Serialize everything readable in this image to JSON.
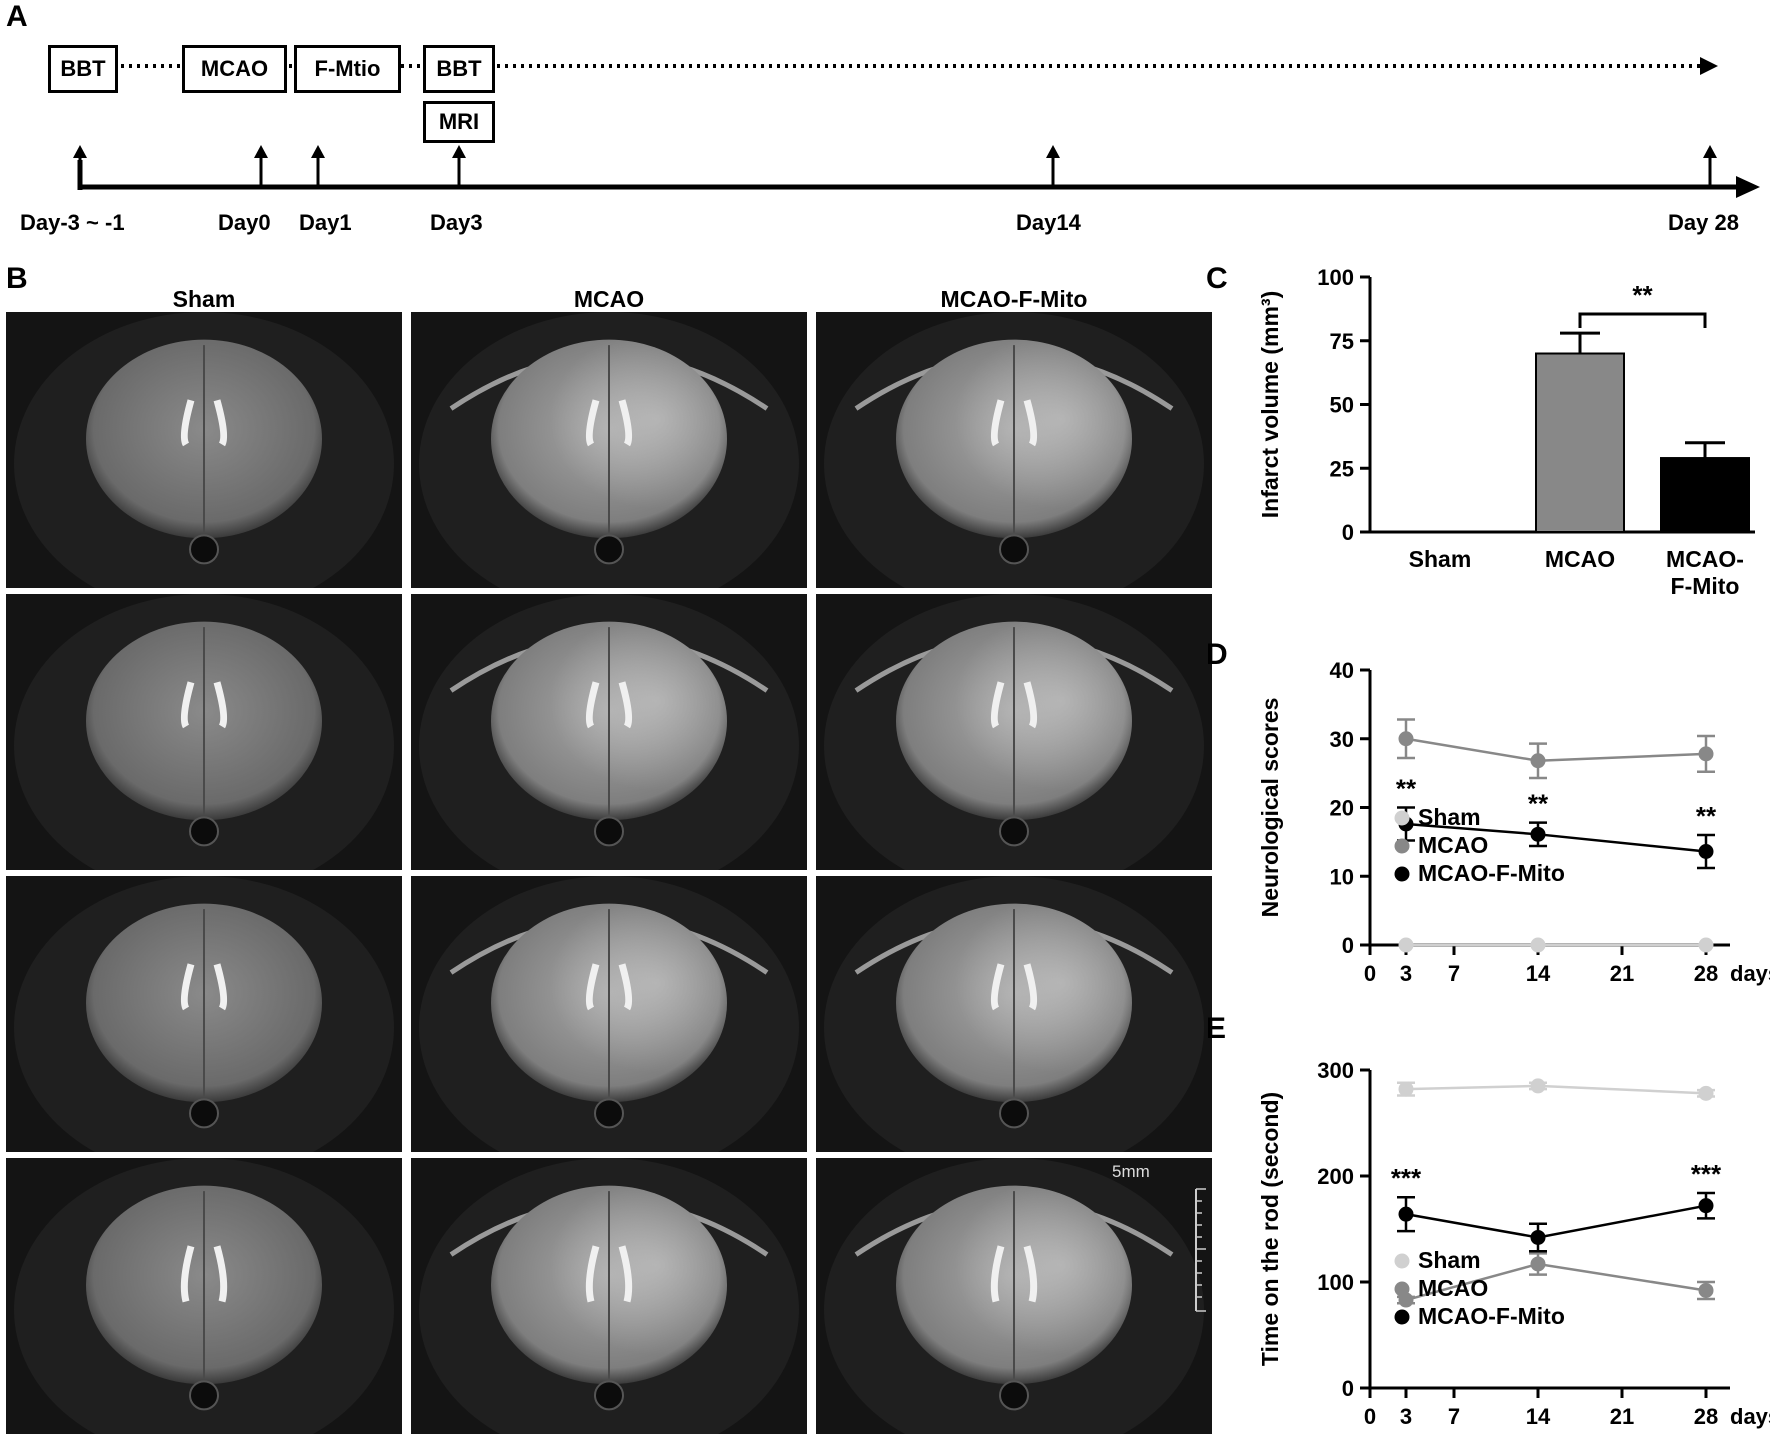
{
  "panels": {
    "a": "A",
    "b": "B",
    "c": "C",
    "d": "D",
    "e": "E"
  },
  "timeline": {
    "boxes": [
      "BBT",
      "MCAO",
      "F-Mtio",
      "BBT",
      "MRI"
    ],
    "days": [
      "Day-3 ~ -1",
      "Day0",
      "Day1",
      "Day3",
      "Day14",
      "Day 28"
    ]
  },
  "mri": {
    "columns": [
      "Sham",
      "MCAO",
      "MCAO-F-Mito"
    ],
    "scale_bar": "5mm"
  },
  "chart_data": [
    {
      "type": "bar",
      "panel": "C",
      "categories": [
        "Sham",
        "MCAO",
        "MCAO-F-Mito"
      ],
      "tick_labels": [
        "Sham",
        "MCAO",
        "MCAO-",
        "F-Mito"
      ],
      "values": [
        0,
        70,
        29
      ],
      "errors": [
        0,
        8,
        6
      ],
      "colors": [
        "#ffffff",
        "#888888",
        "#000000"
      ],
      "ylabel": "Infarct volume (mm³)",
      "ylim": [
        0,
        100
      ],
      "yticks": [
        0,
        25,
        50,
        75,
        100
      ],
      "significance": "**"
    },
    {
      "type": "line",
      "panel": "D",
      "ylabel": "Neurological scores",
      "x_unit": "days",
      "xticks": [
        0,
        3,
        7,
        14,
        21,
        28
      ],
      "ylim": [
        0,
        40
      ],
      "yticks": [
        0,
        10,
        20,
        30,
        40
      ],
      "x": [
        3,
        14,
        28
      ],
      "series": [
        {
          "name": "Sham",
          "values": [
            0,
            0,
            0
          ],
          "errors": [
            0,
            0,
            0
          ],
          "color": "#d0d0d0"
        },
        {
          "name": "MCAO",
          "values": [
            30,
            26.8,
            27.8
          ],
          "errors": [
            2.8,
            2.5,
            2.6
          ],
          "color": "#888888"
        },
        {
          "name": "MCAO-F-Mito",
          "values": [
            17.6,
            16.1,
            13.6
          ],
          "errors": [
            2.4,
            1.7,
            2.4
          ],
          "color": "#000000"
        }
      ],
      "annotations": [
        "**",
        "**",
        "**"
      ],
      "legend": "bottom-right"
    },
    {
      "type": "line",
      "panel": "E",
      "ylabel": "Time on the rod (second)",
      "x_unit": "days",
      "xticks": [
        0,
        3,
        7,
        14,
        21,
        28
      ],
      "ylim": [
        0,
        300
      ],
      "yticks": [
        0,
        100,
        200,
        300
      ],
      "x": [
        3,
        14,
        28
      ],
      "series": [
        {
          "name": "Sham",
          "values": [
            282,
            285,
            278
          ],
          "errors": [
            6,
            3,
            3
          ],
          "color": "#d0d0d0"
        },
        {
          "name": "MCAO",
          "values": [
            83,
            117,
            92
          ],
          "errors": [
            3,
            10,
            8
          ],
          "color": "#888888"
        },
        {
          "name": "MCAO-F-Mito",
          "values": [
            164,
            142,
            172
          ],
          "errors": [
            16,
            13,
            12
          ],
          "color": "#000000"
        }
      ],
      "annotations": [
        "***",
        "",
        "***"
      ],
      "legend": "bottom-right"
    }
  ]
}
